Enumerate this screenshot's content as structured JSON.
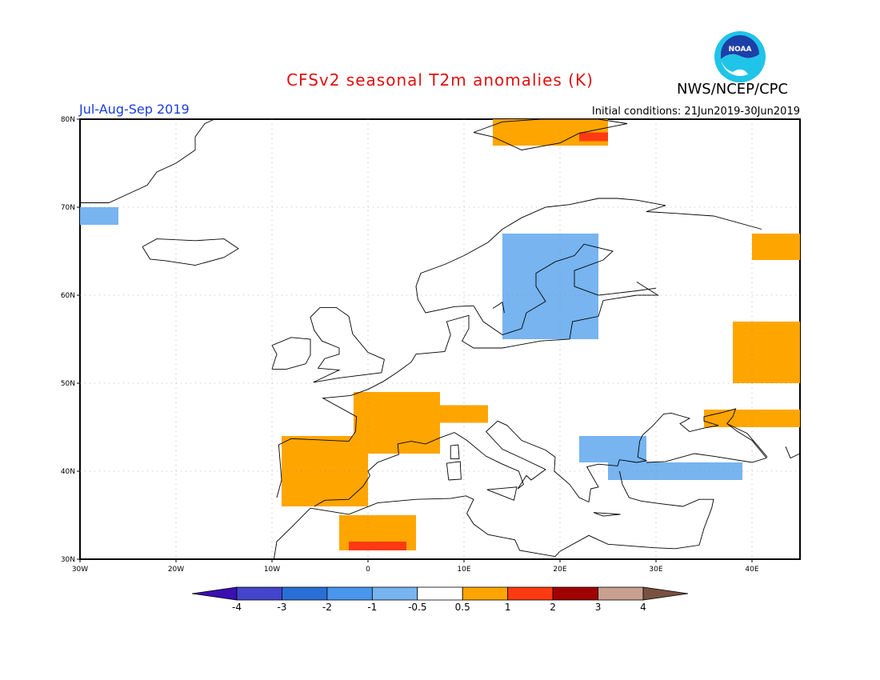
{
  "header": {
    "title": "CFSv2 seasonal T2m anomalies (K)",
    "agency": "NWS/NCEP/CPC",
    "logo_text": "NOAA",
    "period": "Jul-Aug-Sep 2019",
    "initial_conditions": "Initial conditions: 21Jun2019-30Jun2019"
  },
  "map": {
    "lon_range": [
      -30,
      45
    ],
    "lat_range": [
      30,
      80
    ],
    "lon_ticks": [
      {
        "value": -30,
        "label": "30W"
      },
      {
        "value": -20,
        "label": "20W"
      },
      {
        "value": -10,
        "label": "10W"
      },
      {
        "value": 0,
        "label": "0"
      },
      {
        "value": 10,
        "label": "10E"
      },
      {
        "value": 20,
        "label": "20E"
      },
      {
        "value": 30,
        "label": "30E"
      },
      {
        "value": 40,
        "label": "40E"
      }
    ],
    "lat_ticks": [
      {
        "value": 30,
        "label": "30N"
      },
      {
        "value": 40,
        "label": "40N"
      },
      {
        "value": 50,
        "label": "50N"
      },
      {
        "value": 60,
        "label": "60N"
      },
      {
        "value": 70,
        "label": "70N"
      },
      {
        "value": 80,
        "label": "80N"
      }
    ],
    "grid": "dotted",
    "colors": {
      "pos_0_5_1": "#ffa500",
      "pos_1_2": "#ff3a10",
      "neg_0_5_1": "#77b4f0",
      "neg_1_2": "#4a96ec",
      "land_outline": "#000000"
    },
    "anomaly_regions": [
      {
        "category": "+0.5 to 1",
        "area": "Iberian Peninsula",
        "lon": [
          -9,
          0
        ],
        "lat": [
          36,
          44
        ]
      },
      {
        "category": "+0.5 to 1",
        "area": "France",
        "lon": [
          -1.5,
          7.5
        ],
        "lat": [
          42,
          49
        ]
      },
      {
        "category": "+0.5 to 1",
        "area": "Alps / Switzerland",
        "lon": [
          6,
          12.5
        ],
        "lat": [
          45.5,
          47.5
        ]
      },
      {
        "category": "+0.5 to 1",
        "area": "North Africa (Algeria)",
        "lon": [
          -3,
          5
        ],
        "lat": [
          31,
          35
        ]
      },
      {
        "category": "+0.5 to 1",
        "area": "Svalbard",
        "lon": [
          13,
          25
        ],
        "lat": [
          77,
          80
        ]
      },
      {
        "category": "+0.5 to 1",
        "area": "Western Russia",
        "lon": [
          38,
          45
        ],
        "lat": [
          50,
          57
        ]
      },
      {
        "category": "+0.5 to 1",
        "area": "Northern Russia",
        "lon": [
          40,
          45
        ],
        "lat": [
          64,
          67
        ]
      },
      {
        "category": "+0.5 to 1",
        "area": "Crimea / Caspian",
        "lon": [
          35,
          45
        ],
        "lat": [
          45,
          47
        ]
      },
      {
        "category": "+1 to 2",
        "area": "Svalbard east",
        "lon": [
          22,
          25
        ],
        "lat": [
          77.5,
          78.5
        ]
      },
      {
        "category": "+1 to 2",
        "area": "Algeria spots",
        "lon": [
          -2,
          4
        ],
        "lat": [
          31,
          32
        ]
      },
      {
        "category": "-0.5 to -1",
        "area": "Scandinavia",
        "lon": [
          14,
          24
        ],
        "lat": [
          55,
          67
        ]
      },
      {
        "category": "-0.5 to -1",
        "area": "Balkans / Black Sea",
        "lon": [
          22,
          29
        ],
        "lat": [
          41,
          44
        ]
      },
      {
        "category": "-0.5 to -1",
        "area": "Turkey",
        "lon": [
          25,
          39
        ],
        "lat": [
          39,
          41
        ]
      },
      {
        "category": "-0.5 to -1",
        "area": "Greenland coast",
        "lon": [
          -30,
          -26
        ],
        "lat": [
          68,
          70
        ]
      }
    ]
  },
  "colorbar": {
    "labels": [
      "-4",
      "-3",
      "-2",
      "-1",
      "-0.5",
      "0.5",
      "1",
      "2",
      "3",
      "4"
    ],
    "colors": [
      "#3a10b0",
      "#4444cc",
      "#2a6fd6",
      "#4a96ec",
      "#77b4f0",
      "#ffffff",
      "#ffa500",
      "#ff3a10",
      "#a00000",
      "#c8a090",
      "#7a5040"
    ]
  }
}
